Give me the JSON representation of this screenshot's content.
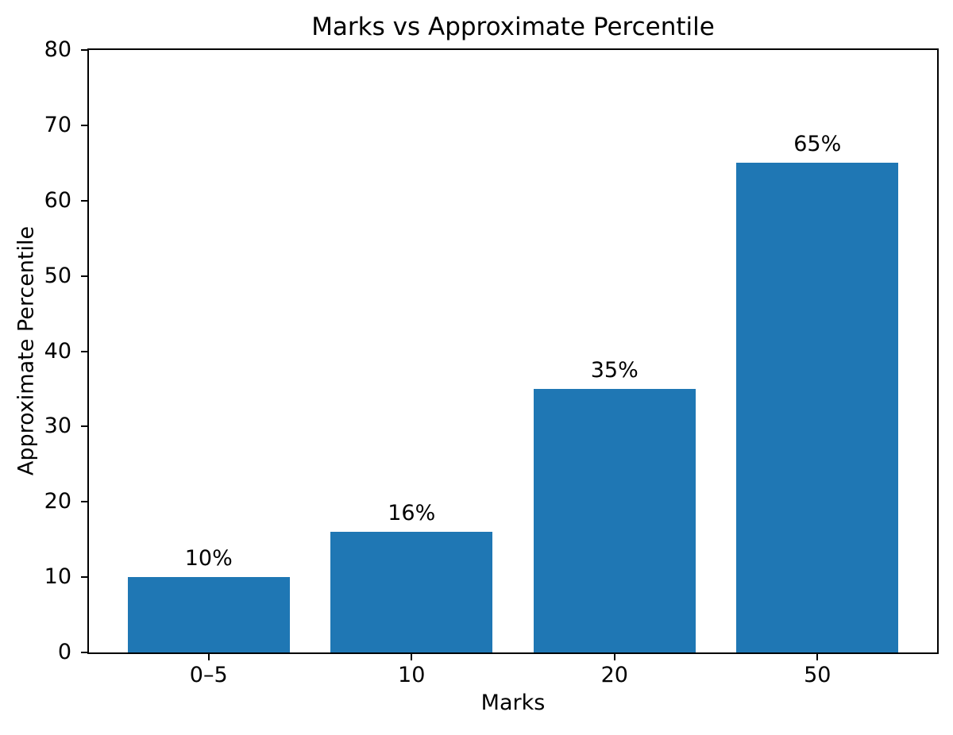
{
  "chart_data": {
    "type": "bar",
    "title": "Marks vs Approximate Percentile",
    "xlabel": "Marks",
    "ylabel": "Approximate Percentile",
    "categories": [
      "0–5",
      "10",
      "20",
      "50"
    ],
    "values": [
      10,
      16,
      35,
      65
    ],
    "bar_labels": [
      "10%",
      "16%",
      "35%",
      "65%"
    ],
    "ylim": [
      0,
      80
    ],
    "yticks": [
      0,
      10,
      20,
      30,
      40,
      50,
      60,
      70,
      80
    ],
    "bar_color": "#1f77b4",
    "grid": false,
    "legend_position": "none"
  }
}
